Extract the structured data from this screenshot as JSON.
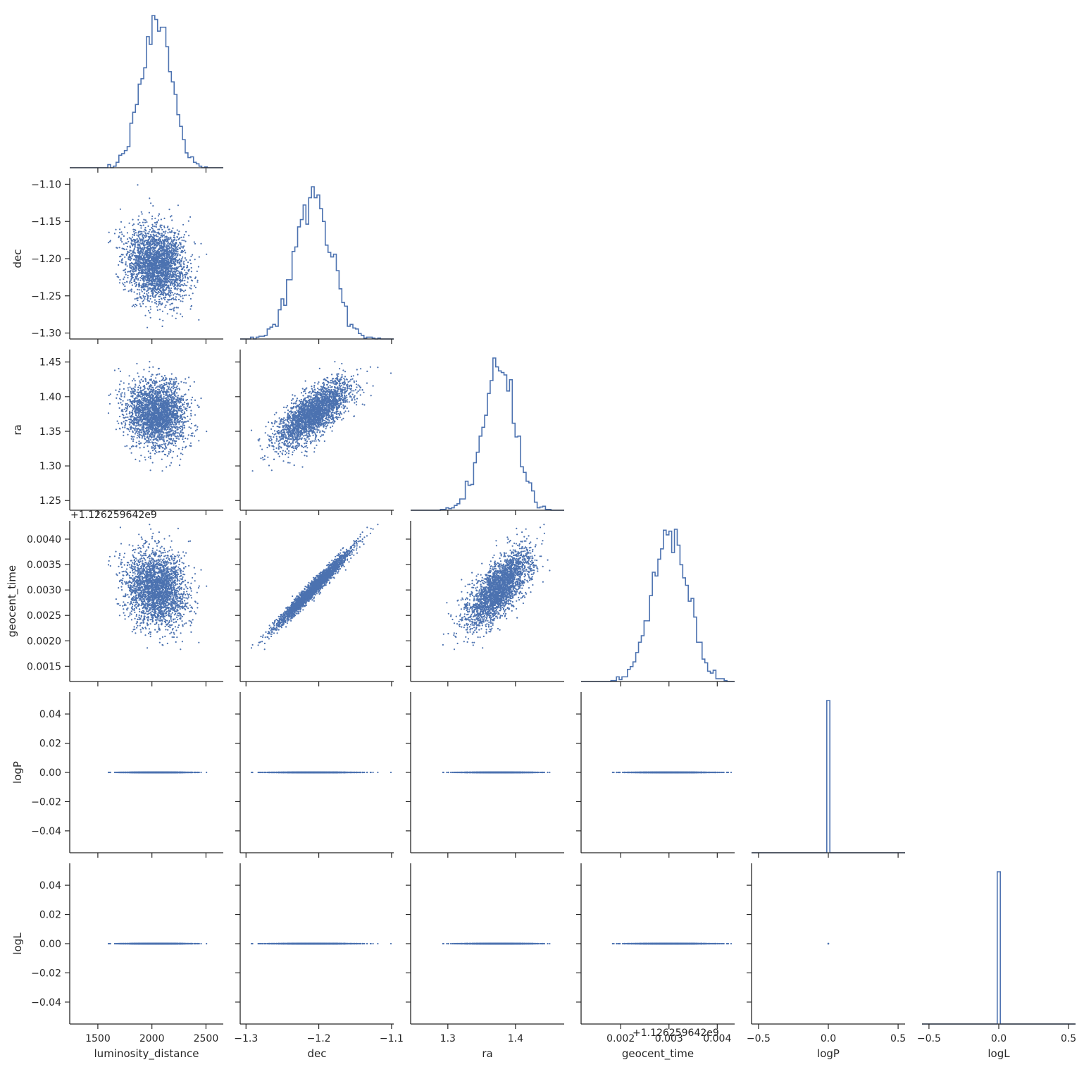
{
  "chart_data": {
    "type": "corner",
    "description_kind": "pairplot of posterior samples (lower triangle scatter, diagonal step histograms)",
    "series_color": "#4c72b0",
    "grid": false,
    "variables": [
      {
        "name": "luminosity_distance",
        "xlim": [
          1240,
          2660
        ],
        "xticks": [
          1500,
          2000,
          2500
        ],
        "xticklabels": [
          "1500",
          "2000",
          "2500"
        ],
        "hist_center": 2040,
        "hist_sd": 135
      },
      {
        "name": "dec",
        "xlim": [
          -1.308,
          -1.097
        ],
        "xticks": [
          -1.3,
          -1.2,
          -1.1
        ],
        "xticklabels": [
          "−1.3",
          "−1.2",
          "−1.1"
        ],
        "ylim": [
          -1.308,
          -1.092
        ],
        "yticks": [
          -1.3,
          -1.25,
          -1.2,
          -1.15,
          -1.1
        ],
        "yticklabels": [
          "−1.30",
          "−1.25",
          "−1.20",
          "−1.15",
          "−1.10"
        ],
        "hist_center": -1.208,
        "hist_sd": 0.025
      },
      {
        "name": "ra",
        "xlim": [
          1.245,
          1.472
        ],
        "xticks": [
          1.3,
          1.4
        ],
        "xticklabels": [
          "1.3",
          "1.4"
        ],
        "ylim": [
          1.236,
          1.468
        ],
        "yticks": [
          1.25,
          1.3,
          1.35,
          1.4,
          1.45
        ],
        "yticklabels": [
          "1.25",
          "1.30",
          "1.35",
          "1.40",
          "1.45"
        ],
        "hist_center": 1.375,
        "hist_sd": 0.024
      },
      {
        "name": "geocent_time",
        "offset_label": "+1.126259642e9",
        "xlim": [
          0.00118,
          0.00436
        ],
        "xticks": [
          0.002,
          0.003,
          0.004
        ],
        "xticklabels": [
          "0.002",
          "0.003",
          "0.004"
        ],
        "ylim": [
          0.0012,
          0.00436
        ],
        "yticks": [
          0.0015,
          0.002,
          0.0025,
          0.003,
          0.0035,
          0.004
        ],
        "yticklabels": [
          "0.0015",
          "0.0020",
          "0.0025",
          "0.0030",
          "0.0035",
          "0.0040"
        ],
        "hist_center": 0.00302,
        "hist_sd": 0.00037
      },
      {
        "name": "logP",
        "xlim": [
          -0.55,
          0.55
        ],
        "xticks": [
          -0.5,
          0.0,
          0.5
        ],
        "xticklabels": [
          "−0.5",
          "0.0",
          "0.5"
        ],
        "ylim": [
          -0.055,
          0.055
        ],
        "yticks": [
          -0.04,
          -0.02,
          0.0,
          0.02,
          0.04
        ],
        "yticklabels": [
          "−0.04",
          "−0.02",
          "0.00",
          "0.02",
          "0.04"
        ],
        "hist_center": 0.0
      },
      {
        "name": "logL",
        "xlim": [
          -0.55,
          0.55
        ],
        "xticks": [
          -0.5,
          0.0,
          0.5
        ],
        "xticklabels": [
          "−0.5",
          "0.0",
          "0.5"
        ],
        "ylim": [
          -0.055,
          0.055
        ],
        "yticks": [
          -0.04,
          -0.02,
          0.0,
          0.02,
          0.04
        ],
        "yticklabels": [
          "−0.04",
          "−0.02",
          "0.00",
          "0.02",
          "0.04"
        ],
        "hist_center": 0.0
      }
    ],
    "correlations": {
      "dec-ra": 0.72,
      "dec-geocent_time": 0.98,
      "ra-geocent_time": 0.72,
      "luminosity_distance-dec": -0.15,
      "luminosity_distance-ra": 0.0,
      "luminosity_distance-geocent_time": -0.1
    },
    "sample_count_estimate": 5000,
    "axis_labels": {
      "x": [
        "luminosity_distance",
        "dec",
        "ra",
        "geocent_time",
        "logP",
        "logL"
      ],
      "y": [
        "dec",
        "ra",
        "geocent_time",
        "logP",
        "logL"
      ]
    }
  }
}
